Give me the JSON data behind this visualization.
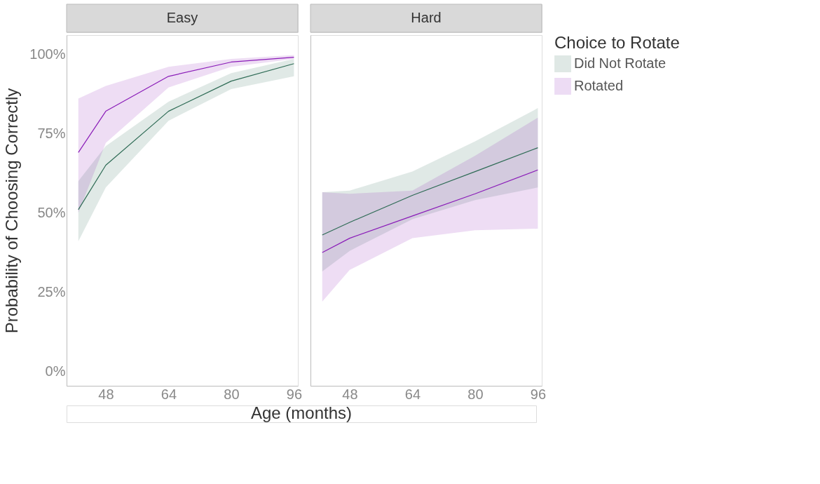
{
  "chart_data": [
    {
      "type": "line",
      "title": "Easy",
      "ylabel": "Probability of Choosing Correctly",
      "xlabel": "Age (months)",
      "x": [
        41,
        48,
        64,
        80,
        96
      ],
      "xlim": [
        38,
        97
      ],
      "xticks": [
        48,
        64,
        80,
        96
      ],
      "ylim": [
        -4.5,
        106
      ],
      "yticks": [
        {
          "value": 0,
          "label": "0%"
        },
        {
          "value": 25,
          "label": "25%"
        },
        {
          "value": 50,
          "label": "50%"
        },
        {
          "value": 75,
          "label": "75%"
        },
        {
          "value": 100,
          "label": "100%"
        }
      ],
      "grid": false,
      "line_style": "solid",
      "marker": "none",
      "series": [
        {
          "color": "#2e6b55",
          "values": [
            51,
            65,
            82,
            91.5,
            97
          ],
          "lower": [
            41,
            58,
            79,
            89,
            93
          ],
          "upper": [
            60,
            71,
            85,
            94,
            98.5
          ]
        },
        {
          "color": "#8a1cb8",
          "values": [
            69,
            82,
            93,
            97.5,
            99
          ],
          "lower": [
            50,
            72,
            89.5,
            96,
            98.5
          ],
          "upper": [
            86,
            90,
            96,
            98.5,
            99.7
          ]
        }
      ]
    },
    {
      "type": "line",
      "title": "Hard",
      "legend_title": "Choice to Rotate",
      "x": [
        41,
        48,
        64,
        80,
        96
      ],
      "xlim": [
        38,
        97
      ],
      "xticks": [
        48,
        64,
        80,
        96
      ],
      "ylim": [
        -4.5,
        106
      ],
      "tick_labels": "x",
      "grid": false,
      "legend": "right",
      "line_style": "solid",
      "marker": "none",
      "series": [
        {
          "name": "Did Not Rotate",
          "color": "#2e6b55",
          "values": [
            43,
            47,
            55.5,
            63,
            70.5
          ],
          "lower": [
            31.5,
            38,
            48,
            54,
            58
          ],
          "upper": [
            56.5,
            57,
            63,
            72.5,
            83
          ]
        },
        {
          "name": "Rotated",
          "color": "#8a1cb8",
          "values": [
            37.5,
            42,
            49,
            56,
            63.5
          ],
          "lower": [
            22,
            32,
            42,
            44.5,
            45
          ],
          "upper": [
            56.5,
            56,
            57,
            68,
            80
          ]
        }
      ]
    }
  ]
}
